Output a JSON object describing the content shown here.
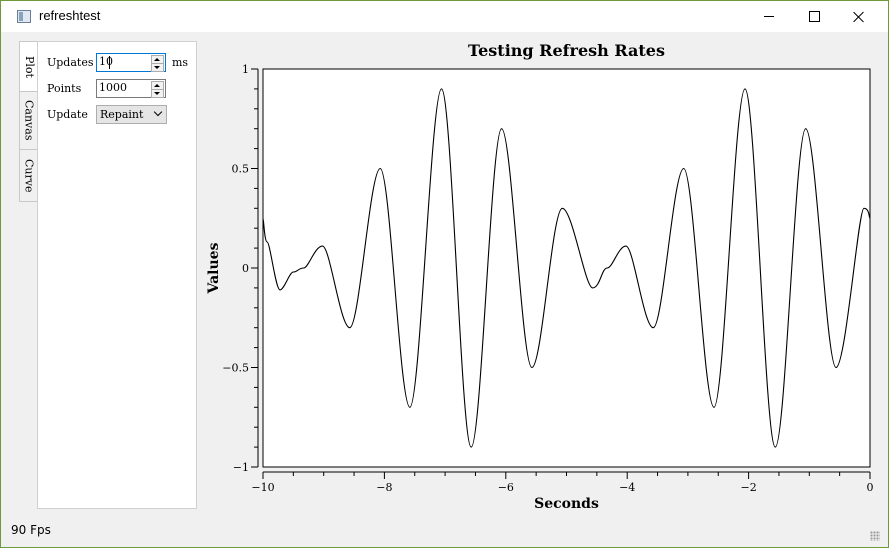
{
  "window": {
    "title": "refreshtest"
  },
  "tabs": [
    {
      "label": "Plot",
      "active": true
    },
    {
      "label": "Canvas",
      "active": false
    },
    {
      "label": "Curve",
      "active": false
    }
  ],
  "controls": {
    "updates_label": "Updates",
    "updates_value": "10",
    "updates_unit": "ms",
    "points_label": "Points",
    "points_value": "1000",
    "update_label": "Update",
    "update_mode": "Repaint"
  },
  "chart_data": {
    "type": "line",
    "title": "Testing Refresh Rates",
    "xlabel": "Seconds",
    "ylabel": "Values",
    "xlim": [
      -10,
      0
    ],
    "ylim": [
      -1,
      1
    ],
    "xticks": [
      "−10",
      "−8",
      "−6",
      "−4",
      "−2",
      "0"
    ],
    "yticks": [
      "1",
      "0.5",
      "0",
      "−0.5",
      "−1"
    ],
    "series": [
      {
        "x": [
          -10,
          -9.93,
          -9.72,
          -9.5,
          -9.33,
          -9.02,
          -8.57,
          -8.07,
          -7.58,
          -7.06,
          -6.57,
          -6.07,
          -5.57,
          -5.07,
          -4.57,
          -4.33,
          -4.02,
          -3.57,
          -3.07,
          -2.57,
          -2.06,
          -1.56,
          -1.06,
          -0.56,
          -0.1,
          0
        ],
        "y": [
          0.25,
          0.13,
          -0.11,
          -0.02,
          0,
          0.11,
          -0.3,
          0.5,
          -0.7,
          0.9,
          -0.9,
          0.7,
          -0.5,
          0.3,
          -0.1,
          0,
          0.11,
          -0.3,
          0.5,
          -0.7,
          0.9,
          -0.9,
          0.7,
          -0.5,
          0.3,
          0.25
        ]
      }
    ]
  },
  "status": {
    "fps": "90 Fps"
  }
}
